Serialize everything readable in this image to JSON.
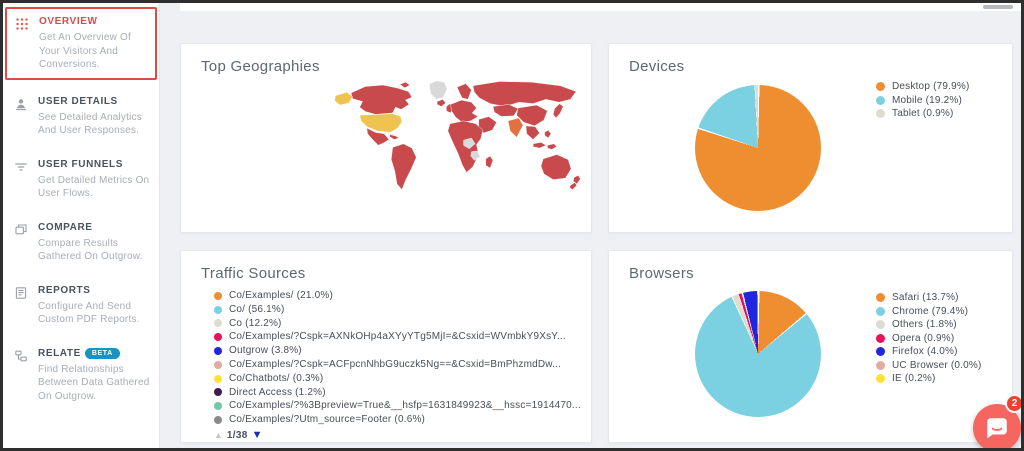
{
  "sidebar": {
    "active_color": "#dd4b45",
    "beta_badge_color": "#1694c4",
    "items": [
      {
        "label": "OVERVIEW",
        "description": "Get An Overview Of Your Visitors And Conversions.",
        "active": true
      },
      {
        "label": "USER DETAILS",
        "description": "See Detailed Analytics And User Responses.",
        "active": false
      },
      {
        "label": "USER FUNNELS",
        "description": "Get Detailed Metrics On User Flows.",
        "active": false
      },
      {
        "label": "COMPARE",
        "description": "Compare Results Gathered On Outgrow.",
        "active": false
      },
      {
        "label": "REPORTS",
        "description": "Configure And Send Custom PDF Reports.",
        "active": false
      },
      {
        "label": "RELATE",
        "badge": "BETA",
        "description": "Find Relationships Between Data Gathered On Outgrow.",
        "active": false
      }
    ]
  },
  "panels": {
    "top_geographies": {
      "title": "Top Geographies"
    },
    "devices": {
      "title": "Devices"
    },
    "traffic_sources": {
      "title": "Traffic Sources",
      "pagination": {
        "up_icon": "▲",
        "label": "1/38",
        "down_icon": "▼"
      }
    },
    "browsers": {
      "title": "Browsers"
    }
  },
  "chart_data": [
    {
      "type": "map",
      "title": "Top Geographies",
      "colors": {
        "red": "#c94a4c",
        "yellow": "#eec44f",
        "orange": "#df7240",
        "gray": "#d9d9d9"
      },
      "notable_regions": [
        {
          "name": "United States",
          "color": "#eec44f"
        },
        {
          "name": "Alaska (US)",
          "color": "#eec44f"
        },
        {
          "name": "India",
          "color": "#df7240"
        },
        {
          "name": "Greenland",
          "color": "#d9d9d9"
        },
        {
          "name": "Central Africa patches",
          "color": "#d9d9d9"
        },
        {
          "name": "Most other countries",
          "color": "#c94a4c"
        }
      ]
    },
    {
      "type": "pie",
      "title": "Devices",
      "series": [
        {
          "label": "Desktop",
          "value": 79.9,
          "display": "Desktop (79.9%)",
          "color": "#ef8d31"
        },
        {
          "label": "Mobile",
          "value": 19.2,
          "display": "Mobile (19.2%)",
          "color": "#7bd0e2"
        },
        {
          "label": "Tablet",
          "value": 0.9,
          "display": "Tablet (0.9%)",
          "color": "#dedcce"
        }
      ],
      "legend_position": "right"
    },
    {
      "type": "list",
      "title": "Traffic Sources",
      "series": [
        {
          "value": 21.0,
          "display": "Co/Examples/ (21.0%)",
          "color": "#ef8d31"
        },
        {
          "value": 56.1,
          "display": "Co/ (56.1%)",
          "color": "#7bd0e2"
        },
        {
          "value": 12.2,
          "display": "Co (12.2%)",
          "color": "#dedcce"
        },
        {
          "display": "Co/Examples/?Cspk=AXNkOHp4aXYyYTg5MjI=&Csxid=WVmbkY9XsY...",
          "color": "#e8115c"
        },
        {
          "value": 3.8,
          "display": "Outgrow (3.8%)",
          "color": "#2026e0"
        },
        {
          "display": "Co/Examples/?Cspk=ACFpcnNhbG9uczk5Ng==&Csxid=BmPhzmdDw...",
          "color": "#e2aba3"
        },
        {
          "value": 0.3,
          "display": "Co/Chatbots/ (0.3%)",
          "color": "#ffe13a"
        },
        {
          "value": 1.2,
          "display": "Direct Access (1.2%)",
          "color": "#3f1c4e"
        },
        {
          "display": "Co/Examples/?%3Bpreview=True&__hsfp=1631849923&__hssc=1914470...",
          "color": "#72c7a6"
        },
        {
          "value": 0.6,
          "display": "Co/Examples/?Utm_source=Footer (0.6%)",
          "color": "#8a8a8a"
        }
      ]
    },
    {
      "type": "pie",
      "title": "Browsers",
      "series": [
        {
          "label": "Safari",
          "value": 13.7,
          "display": "Safari (13.7%)",
          "color": "#ef8d31"
        },
        {
          "label": "Chrome",
          "value": 79.4,
          "display": "Chrome (79.4%)",
          "color": "#7bd0e2"
        },
        {
          "label": "Others",
          "value": 1.8,
          "display": "Others (1.8%)",
          "color": "#dedcce"
        },
        {
          "label": "Opera",
          "value": 0.9,
          "display": "Opera (0.9%)",
          "color": "#e8115c"
        },
        {
          "label": "Firefox",
          "value": 4.0,
          "display": "Firefox (4.0%)",
          "color": "#2026e0"
        },
        {
          "label": "UC Browser",
          "value": 0.0,
          "display": "UC Browser (0.0%)",
          "color": "#e2aba3"
        },
        {
          "label": "IE",
          "value": 0.2,
          "display": "IE (0.2%)",
          "color": "#ffe13a"
        }
      ],
      "legend_position": "right"
    }
  ],
  "chat_widget": {
    "badge_count": "2",
    "bubble_color": "#f4665f",
    "badge_color": "#e8432d"
  }
}
